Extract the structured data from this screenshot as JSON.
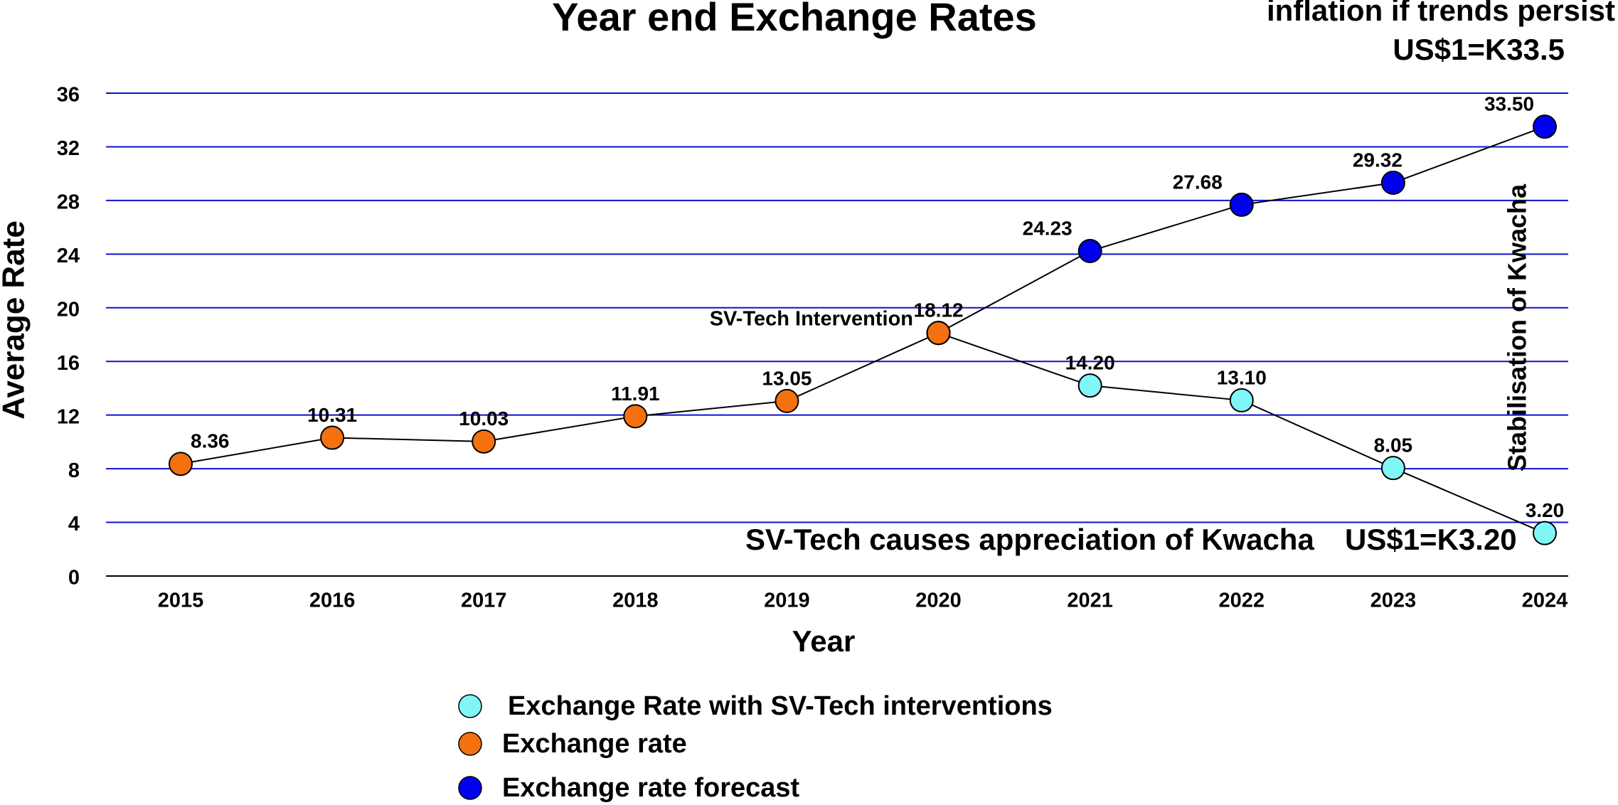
{
  "chart_data": {
    "type": "line",
    "title": "Year end Exchange Rates",
    "x_label": "Year",
    "y_label": "Average Rate",
    "categories": [
      "2015",
      "2016",
      "2017",
      "2018",
      "2019",
      "2020",
      "2021",
      "2022",
      "2023",
      "2024"
    ],
    "series": [
      {
        "name": "Exchange Rate with SV-Tech interventions",
        "color": "#80f6f6",
        "values": [
          null,
          null,
          null,
          null,
          null,
          18.12,
          14.2,
          13.1,
          8.05,
          3.2
        ],
        "value_labels": [
          null,
          null,
          null,
          null,
          null,
          null,
          "14.20",
          "13.10",
          "8.05",
          "3.20"
        ]
      },
      {
        "name": "Exchange rate",
        "color": "#f5700f",
        "values": [
          8.36,
          10.31,
          10.03,
          11.91,
          13.05,
          18.12,
          null,
          null,
          null,
          null
        ],
        "value_labels": [
          "8.36",
          "10.31",
          "10.03",
          "11.91",
          "13.05",
          "18.12",
          null,
          null,
          null,
          null
        ]
      },
      {
        "name": "Exchange rate forecast",
        "color": "#0000f0",
        "values": [
          null,
          null,
          null,
          null,
          null,
          18.12,
          24.23,
          27.68,
          29.32,
          33.5
        ],
        "value_labels": [
          null,
          null,
          null,
          null,
          null,
          null,
          "24.23",
          "27.68",
          "29.32",
          "33.50"
        ]
      }
    ],
    "ylim": [
      0,
      36
    ],
    "yticks": [
      0,
      4,
      8,
      12,
      16,
      20,
      24,
      28,
      32,
      36
    ],
    "grid": true,
    "grid_color": "#1010d0",
    "annotations": [
      "inflation if trends persist",
      "US$1=K33.5",
      "Stabilisation of Kwacha",
      "SV-Tech Intervention",
      "SV-Tech causes appreciation of Kwacha",
      "US$1=K3.20"
    ]
  }
}
